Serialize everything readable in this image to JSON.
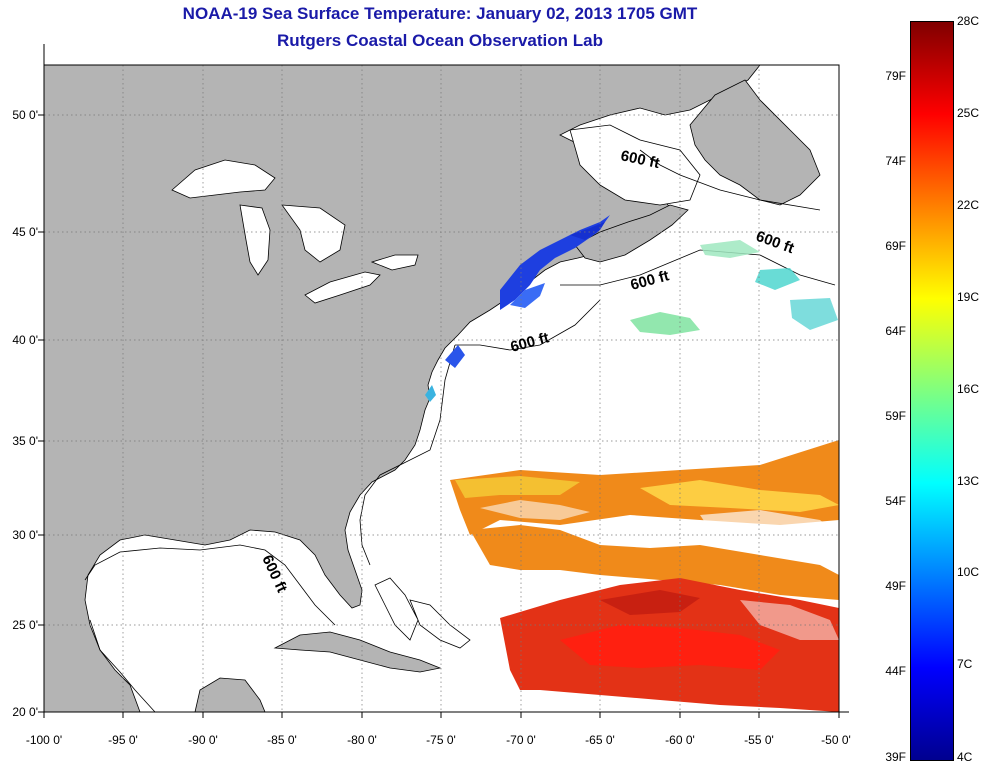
{
  "title": "NOAA-19 Sea Surface Temperature:  January 02, 2013 1705 GMT",
  "subtitle": "Rutgers Coastal Ocean Observation Lab",
  "map": {
    "lon_ticks": [
      "-100 0'",
      "-95 0'",
      "-90 0'",
      "-85 0'",
      "-80 0'",
      "-75 0'",
      "-70 0'",
      "-65 0'",
      "-60 0'",
      "-55 0'",
      "-50 0'"
    ],
    "lat_ticks": [
      "50 0'",
      "45 0'",
      "40 0'",
      "35 0'",
      "30 0'",
      "25 0'",
      "20 0'"
    ],
    "lon_range": [
      -100,
      -50
    ],
    "lat_range": [
      20,
      52.5
    ],
    "depth_labels": [
      "600 ft",
      "600 ft",
      "600 ft",
      "600 ft",
      "600 ft"
    ],
    "land_color": "#b4b4b4",
    "ocean_color": "#ffffff"
  },
  "colorbar": {
    "celsius": [
      "28C",
      "25C",
      "22C",
      "19C",
      "16C",
      "13C",
      "10C",
      "7C",
      "4C"
    ],
    "fahrenheit": [
      "79F",
      "74F",
      "69F",
      "64F",
      "59F",
      "54F",
      "49F",
      "44F",
      "39F"
    ],
    "colors": [
      "#00008f",
      "#0000ff",
      "#0080ff",
      "#00ffff",
      "#7fff80",
      "#ffff00",
      "#ff8000",
      "#ff0000",
      "#800000"
    ]
  }
}
